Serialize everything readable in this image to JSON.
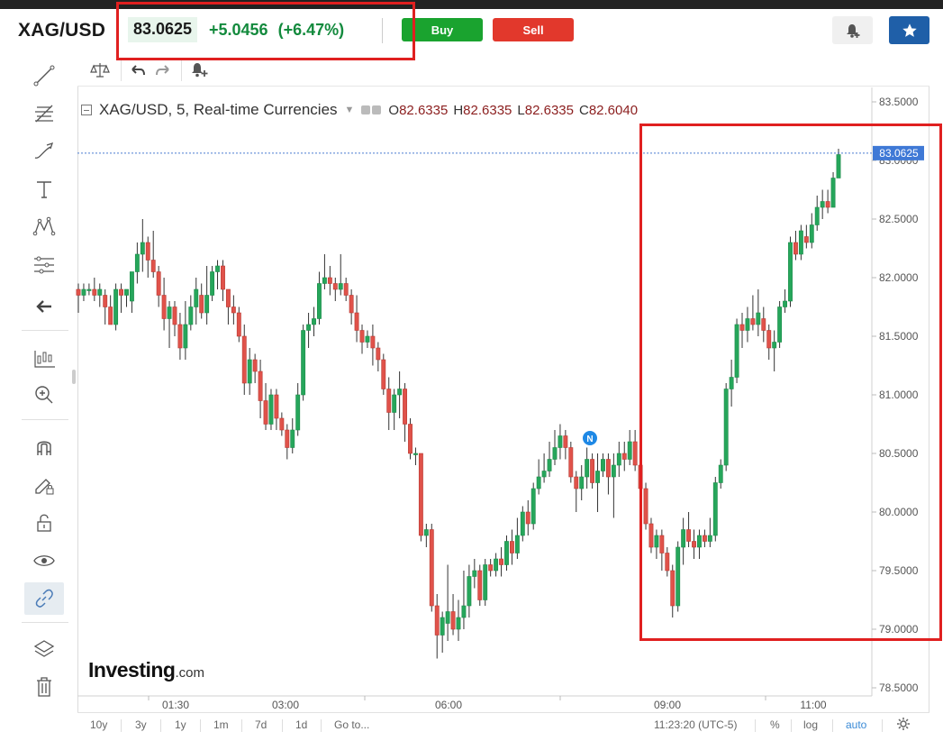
{
  "header": {
    "symbol": "XAG/USD",
    "price": "83.0625",
    "change": "+5.0456",
    "change_pct": "(+6.47%)",
    "buy_label": "Buy",
    "sell_label": "Sell",
    "colors": {
      "up": "#138a3d",
      "buy": "#1aa32f",
      "sell": "#e2382c",
      "star_button": "#1f5fa8"
    },
    "icons": {
      "alert": "bell-plus-icon",
      "watchlist": "star-icon"
    }
  },
  "chart_toolbar": {
    "icons": [
      "compare-scale-icon",
      "undo-icon",
      "redo-icon",
      "add-alert-icon"
    ]
  },
  "left_toolbar": {
    "tools": [
      "trend-line-icon",
      "fib-retracement-icon",
      "brush-icon",
      "text-icon",
      "pattern-icon",
      "measure-icon",
      "back-arrow-icon",
      "indicators-icon",
      "zoom-in-icon",
      "magnet-icon",
      "lock-drawings-icon",
      "unlock-icon",
      "eye-icon",
      "link-icon",
      "layers-icon",
      "trash-icon"
    ],
    "active": "link-icon"
  },
  "legend": {
    "title": "XAG/USD, 5, Real-time Currencies",
    "open_label": "O",
    "open": "82.6335",
    "high_label": "H",
    "high": "82.6335",
    "low_label": "L",
    "low": "82.6335",
    "close_label": "C",
    "close": "82.6040"
  },
  "price_axis": {
    "ticks": [
      "83.5000",
      "83.0000",
      "82.5000",
      "82.0000",
      "81.5000",
      "81.0000",
      "80.5000",
      "80.0000",
      "79.5000",
      "79.0000",
      "78.5000"
    ],
    "last_price_label": "83.0625"
  },
  "time_axis": {
    "ticks": [
      "01:30",
      "03:00",
      "06:00",
      "09:00",
      "11:00"
    ]
  },
  "news_marker": "N",
  "bottom_bar": {
    "ranges": [
      "10y",
      "3y",
      "1y",
      "1m",
      "7d",
      "1d"
    ],
    "goto": "Go to...",
    "time": "11:23:20 (UTC-5)",
    "percent": "%",
    "log": "log",
    "auto": "auto",
    "settings_icon": "gear-icon"
  },
  "logo": {
    "main": "Investing",
    "suffix": ".com"
  },
  "chart_data": {
    "type": "candlestick",
    "title": "XAG/USD, 5, Real-time Currencies",
    "ylim": [
      78.5,
      83.5
    ],
    "last_price": 83.0625,
    "x_ticks": [
      "01:30",
      "03:00",
      "06:00",
      "09:00",
      "11:00"
    ],
    "candles": [
      [
        81.9,
        81.85,
        81.95,
        81.7
      ],
      [
        81.85,
        81.9,
        81.95,
        81.8
      ],
      [
        81.9,
        81.9,
        81.95,
        81.85
      ],
      [
        81.9,
        81.85,
        82.0,
        81.8
      ],
      [
        81.85,
        81.9,
        81.95,
        81.75
      ],
      [
        81.85,
        81.75,
        81.9,
        81.6
      ],
      [
        81.75,
        81.6,
        81.85,
        81.6
      ],
      [
        81.6,
        81.9,
        81.95,
        81.55
      ],
      [
        81.9,
        81.85,
        81.95,
        81.7
      ],
      [
        81.85,
        81.9,
        81.9,
        81.75
      ],
      [
        81.8,
        82.05,
        82.05,
        81.7
      ],
      [
        82.05,
        82.2,
        82.3,
        81.95
      ],
      [
        82.2,
        82.3,
        82.5,
        82.05
      ],
      [
        82.3,
        82.15,
        82.35,
        82.0
      ],
      [
        82.15,
        82.05,
        82.4,
        82.0
      ],
      [
        82.05,
        81.85,
        82.1,
        81.75
      ],
      [
        81.85,
        81.65,
        82.0,
        81.55
      ],
      [
        81.65,
        81.75,
        81.8,
        81.4
      ],
      [
        81.75,
        81.6,
        81.8,
        81.5
      ],
      [
        81.6,
        81.4,
        81.7,
        81.3
      ],
      [
        81.4,
        81.6,
        81.8,
        81.3
      ],
      [
        81.6,
        81.75,
        81.85,
        81.55
      ],
      [
        81.75,
        81.9,
        82.0,
        81.6
      ],
      [
        81.85,
        81.7,
        81.95,
        81.65
      ],
      [
        81.7,
        81.85,
        82.1,
        81.6
      ],
      [
        81.85,
        82.05,
        82.1,
        81.8
      ],
      [
        82.05,
        82.1,
        82.15,
        81.9
      ],
      [
        82.1,
        81.9,
        82.15,
        81.8
      ],
      [
        81.9,
        81.75,
        81.9,
        81.6
      ],
      [
        81.75,
        81.7,
        81.85,
        81.6
      ],
      [
        81.7,
        81.5,
        81.75,
        81.45
      ],
      [
        81.5,
        81.1,
        81.6,
        81.0
      ],
      [
        81.1,
        81.3,
        81.4,
        81.0
      ],
      [
        81.3,
        81.2,
        81.35,
        81.1
      ],
      [
        81.2,
        80.95,
        81.3,
        80.8
      ],
      [
        80.95,
        80.75,
        81.1,
        80.7
      ],
      [
        80.75,
        81.0,
        81.05,
        80.7
      ],
      [
        81.0,
        80.8,
        81.05,
        80.7
      ],
      [
        80.8,
        80.7,
        80.85,
        80.65
      ],
      [
        80.7,
        80.55,
        80.75,
        80.45
      ],
      [
        80.55,
        80.7,
        80.8,
        80.5
      ],
      [
        80.7,
        81.0,
        81.1,
        80.65
      ],
      [
        81.0,
        81.55,
        81.6,
        80.95
      ],
      [
        81.55,
        81.6,
        81.7,
        81.4
      ],
      [
        81.6,
        81.65,
        81.75,
        81.5
      ],
      [
        81.65,
        81.95,
        82.05,
        81.6
      ],
      [
        81.95,
        82.0,
        82.2,
        81.9
      ],
      [
        82.0,
        81.95,
        82.1,
        81.85
      ],
      [
        81.95,
        81.9,
        82.0,
        81.8
      ],
      [
        81.9,
        81.95,
        82.2,
        81.85
      ],
      [
        81.95,
        81.85,
        82.0,
        81.8
      ],
      [
        81.85,
        81.7,
        81.9,
        81.6
      ],
      [
        81.7,
        81.55,
        81.85,
        81.45
      ],
      [
        81.55,
        81.45,
        81.6,
        81.35
      ],
      [
        81.45,
        81.5,
        81.55,
        81.4
      ],
      [
        81.5,
        81.4,
        81.6,
        81.25
      ],
      [
        81.4,
        81.3,
        81.45,
        81.2
      ],
      [
        81.3,
        81.05,
        81.35,
        81.0
      ],
      [
        81.05,
        80.85,
        81.15,
        80.7
      ],
      [
        80.85,
        81.0,
        81.05,
        80.7
      ],
      [
        81.0,
        81.05,
        81.2,
        80.8
      ],
      [
        81.05,
        80.75,
        81.1,
        80.6
      ],
      [
        80.75,
        80.5,
        80.8,
        80.45
      ],
      [
        80.5,
        80.5,
        80.55,
        80.4
      ],
      [
        80.5,
        79.8,
        80.5,
        79.75
      ],
      [
        79.8,
        79.85,
        79.9,
        79.7
      ],
      [
        79.85,
        79.2,
        79.9,
        79.15
      ],
      [
        79.2,
        78.95,
        79.3,
        78.75
      ],
      [
        78.95,
        79.1,
        79.15,
        78.8
      ],
      [
        79.05,
        79.15,
        79.55,
        78.9
      ],
      [
        79.15,
        79.0,
        79.3,
        78.95
      ],
      [
        79.0,
        79.1,
        79.25,
        78.9
      ],
      [
        79.1,
        79.2,
        79.5,
        79.0
      ],
      [
        79.2,
        79.45,
        79.55,
        79.1
      ],
      [
        79.45,
        79.5,
        79.6,
        79.35
      ],
      [
        79.5,
        79.25,
        79.55,
        79.2
      ],
      [
        79.25,
        79.55,
        79.6,
        79.2
      ],
      [
        79.55,
        79.5,
        79.6,
        79.45
      ],
      [
        79.5,
        79.6,
        79.65,
        79.45
      ],
      [
        79.6,
        79.55,
        79.7,
        79.45
      ],
      [
        79.55,
        79.75,
        79.8,
        79.5
      ],
      [
        79.75,
        79.65,
        79.85,
        79.55
      ],
      [
        79.65,
        79.8,
        79.95,
        79.6
      ],
      [
        79.8,
        80.0,
        80.05,
        79.75
      ],
      [
        80.0,
        79.9,
        80.1,
        79.8
      ],
      [
        79.9,
        80.2,
        80.25,
        79.85
      ],
      [
        80.2,
        80.3,
        80.45,
        80.15
      ],
      [
        80.3,
        80.35,
        80.5,
        80.25
      ],
      [
        80.35,
        80.45,
        80.6,
        80.3
      ],
      [
        80.45,
        80.55,
        80.7,
        80.4
      ],
      [
        80.55,
        80.65,
        80.75,
        80.45
      ],
      [
        80.65,
        80.55,
        80.7,
        80.45
      ],
      [
        80.55,
        80.3,
        80.6,
        80.25
      ],
      [
        80.3,
        80.2,
        80.35,
        80.0
      ],
      [
        80.2,
        80.3,
        80.4,
        80.1
      ],
      [
        80.3,
        80.45,
        80.55,
        80.2
      ],
      [
        80.45,
        80.25,
        80.5,
        80.2
      ],
      [
        80.25,
        80.35,
        80.5,
        80.0
      ],
      [
        80.35,
        80.45,
        80.5,
        80.3
      ],
      [
        80.45,
        80.3,
        80.5,
        80.15
      ],
      [
        80.3,
        80.4,
        80.5,
        79.95
      ],
      [
        80.4,
        80.5,
        80.6,
        80.3
      ],
      [
        80.5,
        80.45,
        80.6,
        80.35
      ],
      [
        80.45,
        80.6,
        80.7,
        80.4
      ],
      [
        80.6,
        80.4,
        80.7,
        80.35
      ],
      [
        80.4,
        80.2,
        80.5,
        80.15
      ],
      [
        80.2,
        79.9,
        80.25,
        79.85
      ],
      [
        79.9,
        79.7,
        79.95,
        79.65
      ],
      [
        79.7,
        79.8,
        79.85,
        79.6
      ],
      [
        79.8,
        79.65,
        79.85,
        79.5
      ],
      [
        79.65,
        79.5,
        79.7,
        79.45
      ],
      [
        79.5,
        79.2,
        79.55,
        79.1
      ],
      [
        79.2,
        79.7,
        79.75,
        79.15
      ],
      [
        79.7,
        79.85,
        79.95,
        79.55
      ],
      [
        79.85,
        79.75,
        80.0,
        79.7
      ],
      [
        79.75,
        79.7,
        79.85,
        79.6
      ],
      [
        79.7,
        79.8,
        79.85,
        79.6
      ],
      [
        79.8,
        79.75,
        79.85,
        79.7
      ],
      [
        79.75,
        79.8,
        79.95,
        79.7
      ],
      [
        79.8,
        80.25,
        80.3,
        79.75
      ],
      [
        80.25,
        80.4,
        80.45,
        80.2
      ],
      [
        80.4,
        81.05,
        81.1,
        80.35
      ],
      [
        81.05,
        81.15,
        81.3,
        80.9
      ],
      [
        81.15,
        81.6,
        81.65,
        81.1
      ],
      [
        81.6,
        81.55,
        81.7,
        81.4
      ],
      [
        81.55,
        81.65,
        81.75,
        81.45
      ],
      [
        81.65,
        81.6,
        81.85,
        81.55
      ],
      [
        81.6,
        81.7,
        81.9,
        81.5
      ],
      [
        81.65,
        81.55,
        81.75,
        81.45
      ],
      [
        81.55,
        81.4,
        81.6,
        81.3
      ],
      [
        81.4,
        81.45,
        81.55,
        81.2
      ],
      [
        81.45,
        81.75,
        81.8,
        81.4
      ],
      [
        81.75,
        81.8,
        81.9,
        81.7
      ],
      [
        81.8,
        82.3,
        82.35,
        81.75
      ],
      [
        82.3,
        82.2,
        82.4,
        82.15
      ],
      [
        82.2,
        82.4,
        82.45,
        82.15
      ],
      [
        82.35,
        82.3,
        82.45,
        82.25
      ],
      [
        82.3,
        82.45,
        82.55,
        82.25
      ],
      [
        82.45,
        82.6,
        82.7,
        82.4
      ],
      [
        82.6,
        82.65,
        82.75,
        82.5
      ],
      [
        82.65,
        82.6,
        82.75,
        82.55
      ],
      [
        82.6,
        82.85,
        82.9,
        82.6
      ],
      [
        82.85,
        83.05,
        83.1,
        82.85
      ]
    ]
  }
}
